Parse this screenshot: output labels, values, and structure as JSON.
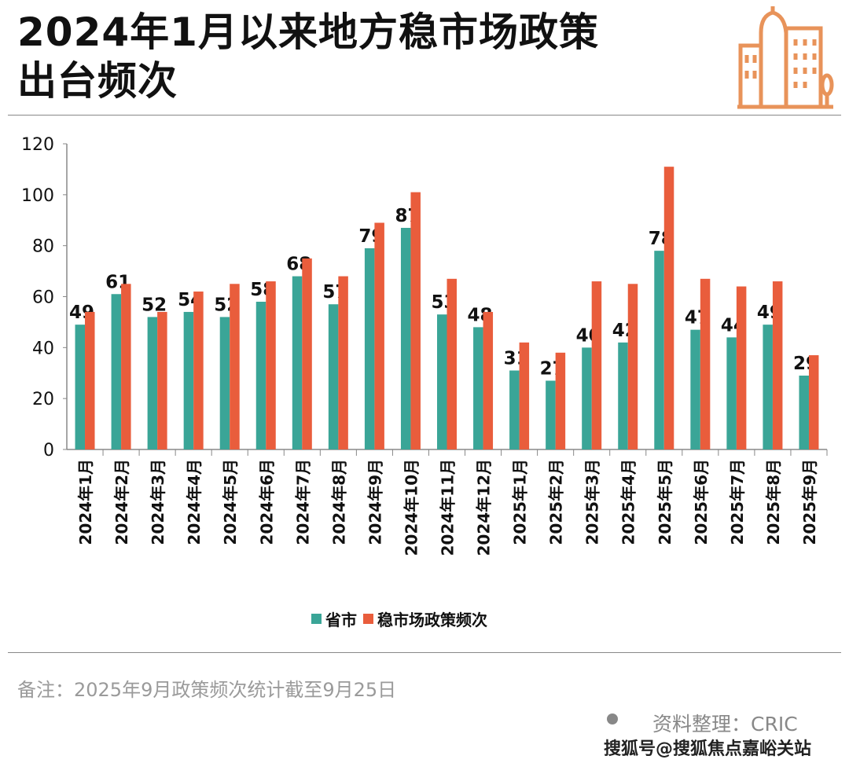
{
  "title": "2024年1月以来地方稳市场政策出台频次",
  "title_lines": [
    "2024年1月以来地方稳市场政策",
    "出台频次"
  ],
  "icon": "city-buildings-icon",
  "colors": {
    "series1": "#3aa597",
    "series2": "#e95d3c",
    "icon": "#e8935a"
  },
  "chart_data": {
    "type": "bar",
    "categories": [
      "2024年1月",
      "2024年2月",
      "2024年3月",
      "2024年4月",
      "2024年5月",
      "2024年6月",
      "2024年7月",
      "2024年8月",
      "2024年9月",
      "2024年10月",
      "2024年11月",
      "2024年12月",
      "2025年1月",
      "2025年2月",
      "2025年3月",
      "2025年4月",
      "2025年5月",
      "2025年6月",
      "2025年7月",
      "2025年8月",
      "2025年9月"
    ],
    "series": [
      {
        "name": "省市",
        "values": [
          49,
          61,
          52,
          54,
          52,
          58,
          68,
          57,
          79,
          87,
          53,
          48,
          31,
          27,
          40,
          42,
          78,
          47,
          44,
          49,
          29
        ],
        "labels_shown": true
      },
      {
        "name": "稳市场政策频次",
        "values": [
          54,
          65,
          54,
          62,
          65,
          66,
          75,
          68,
          89,
          101,
          67,
          54,
          42,
          38,
          66,
          65,
          111,
          67,
          64,
          66,
          37
        ],
        "labels_shown": false
      }
    ],
    "ylim": [
      0,
      120
    ],
    "yticks": [
      0,
      20,
      40,
      60,
      80,
      100,
      120
    ],
    "grid": false,
    "legend": "bottom"
  },
  "footer": {
    "note": "备注：2025年9月政策频次统计截至9月25日",
    "source": "资料整理：CRIC",
    "watermark": "搜狐号@搜狐焦点嘉峪关站"
  }
}
